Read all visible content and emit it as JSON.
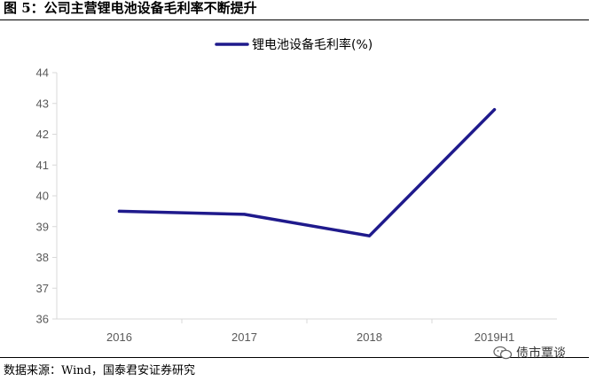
{
  "figure": {
    "title": "图 5：公司主营锂电池设备毛利率不断提升",
    "source": "数据来源：Wind，国泰君安证券研究",
    "watermark_text": "债市覃谈",
    "watermark_icon": "wechat-icon"
  },
  "chart_data": {
    "type": "line",
    "title": "",
    "xlabel": "",
    "ylabel": "",
    "categories": [
      "2016",
      "2017",
      "2018",
      "2019H1"
    ],
    "series": [
      {
        "name": "锂电池设备毛利率(%)",
        "values": [
          39.5,
          39.4,
          38.7,
          42.8
        ],
        "color": "#1f1a8c"
      }
    ],
    "ylim": [
      36,
      44
    ],
    "yticks": [
      "36",
      "37",
      "38",
      "39",
      "40",
      "41",
      "42",
      "43",
      "44"
    ],
    "grid": false,
    "legend_position": "top-center",
    "axis_color": "#d9d9d9",
    "tick_color": "#595959"
  }
}
